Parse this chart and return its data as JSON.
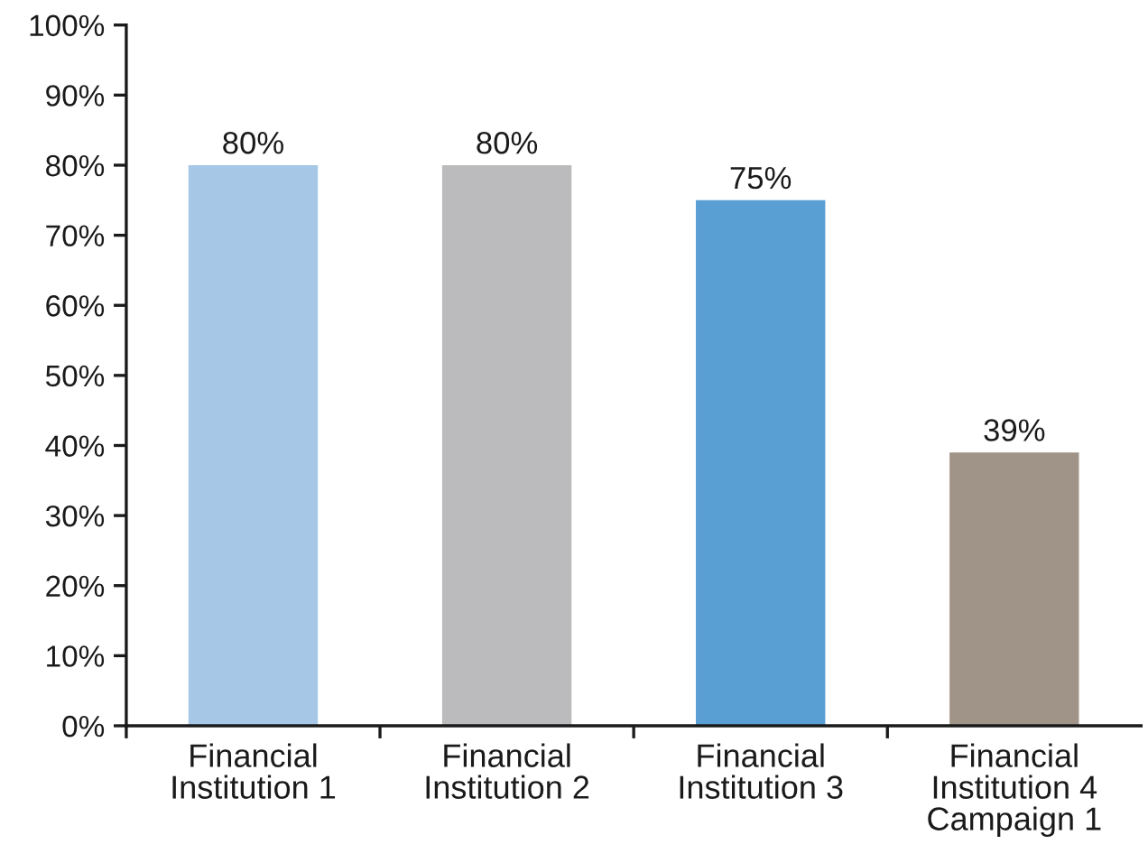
{
  "chart_data": {
    "type": "bar",
    "categories": [
      "Financial\nInstitution 1",
      "Financial\nInstitution 2",
      "Financial\nInstitution 3",
      "Financial\nInstitution 4\nCampaign 1"
    ],
    "values": [
      80,
      80,
      75,
      39
    ],
    "colors": [
      "#a7c7e7",
      "#bbbbbd",
      "#5a9fd4",
      "#a09488"
    ],
    "value_labels": [
      "80%",
      "80%",
      "75%",
      "39%"
    ],
    "ylim": [
      0,
      100
    ],
    "yticks": [
      {
        "value": 0,
        "label": "0%"
      },
      {
        "value": 10,
        "label": "10%"
      },
      {
        "value": 20,
        "label": "20%"
      },
      {
        "value": 30,
        "label": "30%"
      },
      {
        "value": 40,
        "label": "40%"
      },
      {
        "value": 50,
        "label": "50%"
      },
      {
        "value": 60,
        "label": "60%"
      },
      {
        "value": 70,
        "label": "70%"
      },
      {
        "value": 80,
        "label": "80%"
      },
      {
        "value": 90,
        "label": "90%"
      },
      {
        "value": 100,
        "label": "100%"
      }
    ],
    "grid": false,
    "legend": false
  }
}
